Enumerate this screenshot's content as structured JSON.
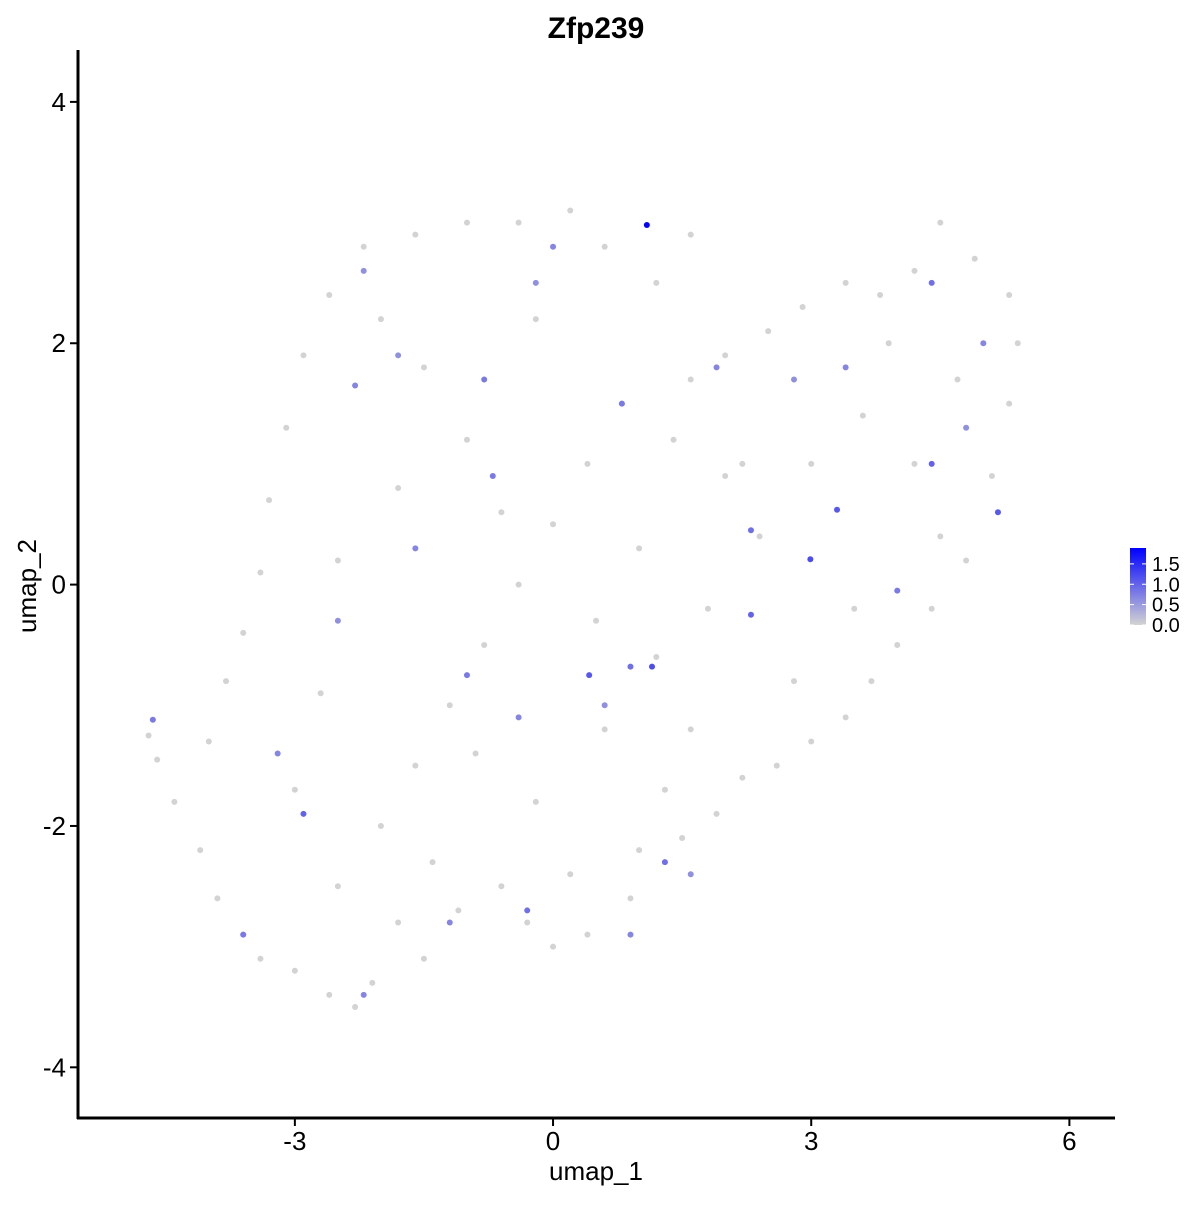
{
  "chart_data": {
    "type": "scatter",
    "title": "Zfp239",
    "x_label": "umap_1",
    "y_label": "umap_2",
    "xlim": [
      -5.52,
      6.53
    ],
    "ylim": [
      -4.42,
      4.43
    ],
    "xticks": [
      -3,
      0,
      3,
      6
    ],
    "yticks": [
      -4,
      -2,
      0,
      2,
      4
    ],
    "x": [
      -4.7,
      -4.6,
      -4.4,
      -4.1,
      -3.9,
      -3.6,
      -3.4,
      -3.0,
      -2.6,
      -2.3,
      -2.1,
      -1.5,
      -1.1,
      -0.6,
      -0.3,
      0.0,
      0.4,
      0.9,
      1.0,
      1.5,
      1.9,
      2.2,
      2.6,
      3.0,
      3.4,
      3.7,
      4.0,
      4.4,
      4.8,
      5.1,
      5.3,
      5.4,
      5.3,
      4.9,
      4.5,
      4.2,
      3.8,
      3.4,
      2.9,
      2.5,
      2.0,
      1.6,
      1.6,
      1.2,
      0.6,
      0.2,
      -0.4,
      -1.0,
      -1.6,
      -2.2,
      -2.6,
      -2.9,
      -3.1,
      -3.3,
      -3.4,
      -3.6,
      -3.8,
      -4.0,
      -2.5,
      -2.0,
      -1.6,
      -1.2,
      -0.8,
      -0.4,
      0.0,
      0.4,
      0.8,
      -1.0,
      -1.8,
      -2.5,
      -2.7,
      -1.4,
      -0.2,
      0.6,
      1.2,
      1.8,
      2.4,
      3.0,
      3.6,
      4.2,
      4.5,
      3.5,
      2.8,
      1.6,
      0.5,
      -0.6,
      -1.5,
      -2.0,
      -0.2,
      1.0,
      2.2,
      3.9,
      4.7,
      -3.0,
      -1.8,
      0.2,
      1.3,
      -0.9,
      2.0,
      1.4,
      -4.65,
      2.99,
      5.17,
      1.15,
      0.9,
      2.3,
      4.4,
      4.4,
      3.3,
      -2.9,
      0.42,
      -1.0,
      -0.3,
      0.9,
      -2.2,
      -3.6,
      -2.3,
      -0.7,
      -1.8,
      0.0,
      -0.2,
      -2.2,
      1.3,
      2.3,
      4.0,
      5.0,
      -1.6,
      0.8,
      1.9,
      -3.2,
      -2.5,
      -1.2,
      0.6,
      3.4,
      4.8,
      -0.8,
      2.8,
      -0.4,
      1.6,
      1.09
    ],
    "y": [
      -1.25,
      -1.45,
      -1.8,
      -2.2,
      -2.6,
      -2.9,
      -3.1,
      -3.2,
      -3.4,
      -3.5,
      -3.3,
      -3.1,
      -2.7,
      -2.5,
      -2.8,
      -3.0,
      -2.9,
      -2.6,
      -2.2,
      -2.1,
      -1.9,
      -1.6,
      -1.5,
      -1.3,
      -1.1,
      -0.8,
      -0.5,
      -0.2,
      0.2,
      0.9,
      1.5,
      2.0,
      2.4,
      2.7,
      3.0,
      2.6,
      2.4,
      2.5,
      2.3,
      2.1,
      1.9,
      1.7,
      2.9,
      2.5,
      2.8,
      3.1,
      3.0,
      3.0,
      2.9,
      2.8,
      2.4,
      1.9,
      1.3,
      0.7,
      0.1,
      -0.4,
      -0.8,
      -1.3,
      -2.5,
      -2.0,
      -1.5,
      -1.0,
      -0.5,
      0.0,
      0.5,
      1.0,
      1.5,
      1.2,
      0.8,
      0.2,
      -0.9,
      -2.3,
      -1.8,
      -1.2,
      -0.6,
      -0.2,
      0.4,
      1.0,
      1.4,
      1.0,
      0.4,
      -0.2,
      -0.8,
      -1.2,
      -0.3,
      0.6,
      1.8,
      2.2,
      2.2,
      0.3,
      1.0,
      2.0,
      1.7,
      -1.7,
      -2.8,
      -2.4,
      -1.7,
      -1.4,
      0.9,
      1.2,
      -1.12,
      0.21,
      0.6,
      -0.68,
      -0.68,
      -0.25,
      1.0,
      2.5,
      0.62,
      -1.9,
      -0.75,
      -0.75,
      -2.7,
      -2.9,
      -3.4,
      -2.9,
      1.65,
      0.9,
      1.9,
      2.8,
      2.5,
      2.6,
      -2.3,
      0.45,
      -0.05,
      2.0,
      0.3,
      1.5,
      1.8,
      -1.4,
      -0.3,
      -2.8,
      -1.0,
      1.8,
      1.3,
      1.7,
      1.7,
      -1.1,
      -2.4,
      2.98
    ],
    "expression": [
      0,
      0,
      0,
      0,
      0,
      0,
      0,
      0,
      0,
      0,
      0,
      0,
      0,
      0,
      0,
      0,
      0,
      0,
      0,
      0,
      0,
      0,
      0,
      0,
      0,
      0,
      0,
      0,
      0,
      0,
      0,
      0,
      0,
      0,
      0,
      0,
      0,
      0,
      0,
      0,
      0,
      0,
      0,
      0,
      0,
      0,
      0,
      0,
      0,
      0,
      0,
      0,
      0,
      0,
      0,
      0,
      0,
      0,
      0,
      0,
      0,
      0,
      0,
      0,
      0,
      0,
      0,
      0,
      0,
      0,
      0,
      0,
      0,
      0,
      0,
      0,
      0,
      0,
      0,
      0,
      0,
      0,
      0,
      0,
      0,
      0,
      0,
      0,
      0,
      0,
      0,
      0,
      0,
      0,
      0,
      0,
      0,
      0,
      0,
      0,
      0.8,
      1.2,
      1.1,
      1.2,
      0.9,
      1.0,
      1.0,
      0.9,
      1.1,
      1.0,
      1.1,
      0.8,
      0.9,
      0.7,
      0.7,
      0.8,
      0.7,
      0.8,
      0.6,
      0.7,
      0.6,
      0.6,
      0.9,
      0.9,
      0.8,
      0.7,
      0.7,
      0.8,
      0.7,
      0.7,
      0.6,
      0.7,
      0.6,
      0.7,
      0.6,
      0.8,
      0.6,
      0.7,
      0.6,
      1.85
    ],
    "colorbar": {
      "lim": [
        0,
        1.89
      ],
      "low_color": "#d3d3d3",
      "high_color": "#0000ff",
      "ticks": [
        {
          "value": 0,
          "label": "0.0"
        },
        0.5,
        {
          "value": 1,
          "label": "1.0"
        },
        1.5
      ]
    }
  }
}
